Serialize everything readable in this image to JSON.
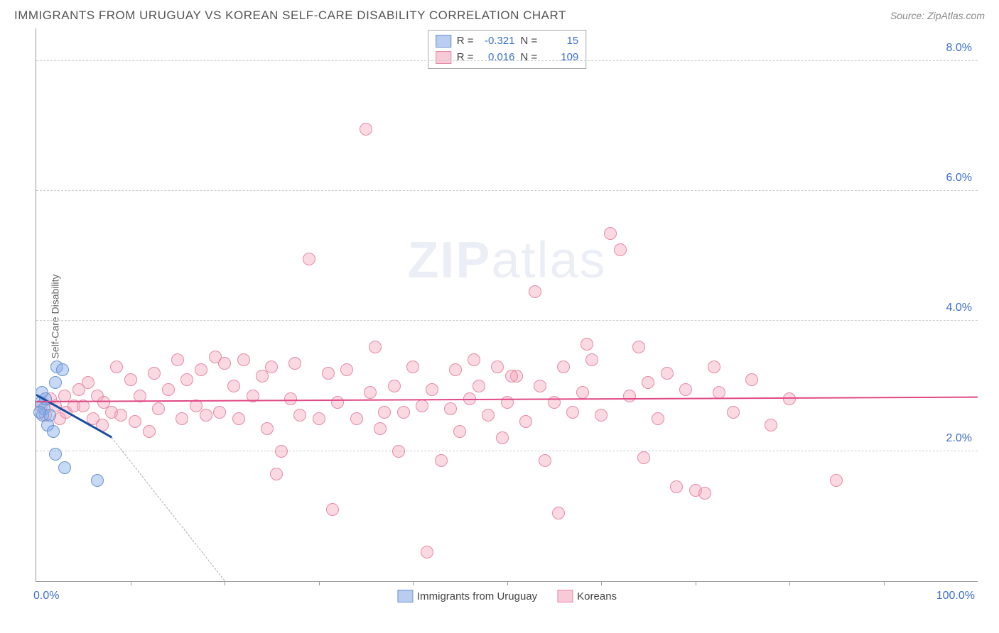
{
  "title": "IMMIGRANTS FROM URUGUAY VS KOREAN SELF-CARE DISABILITY CORRELATION CHART",
  "source_label": "Source:",
  "source_name": "ZipAtlas.com",
  "y_axis_label": "Self-Care Disability",
  "watermark_a": "ZIP",
  "watermark_b": "atlas",
  "x_label_min": "0.0%",
  "x_label_max": "100.0%",
  "chart": {
    "type": "scatter",
    "xlim": [
      0,
      100
    ],
    "ylim": [
      0,
      8.5
    ],
    "y_ticks": [
      2.0,
      4.0,
      6.0,
      8.0
    ],
    "y_tick_labels": [
      "2.0%",
      "4.0%",
      "6.0%",
      "8.0%"
    ],
    "x_ticks": [
      10,
      20,
      30,
      40,
      50,
      60,
      70,
      80,
      90
    ],
    "grid_color": "#cccccc",
    "background_color": "#ffffff",
    "axis_color": "#999999"
  },
  "series": [
    {
      "key": "uruguay",
      "label": "Immigrants from Uruguay",
      "fill": "rgba(130,170,230,0.45)",
      "stroke": "#6a93d4",
      "swatch_fill": "#b8cdef",
      "swatch_stroke": "#6a93d4",
      "r_label": "R =",
      "r_value": "-0.321",
      "n_label": "N =",
      "n_value": "15",
      "trend": {
        "x1": 0,
        "y1": 2.85,
        "x2": 8,
        "y2": 2.2,
        "color": "#1c4ea0",
        "width": 3,
        "dash_x2": 20,
        "dash_y2": 0
      },
      "points": [
        {
          "x": 0.5,
          "y": 2.75
        },
        {
          "x": 0.7,
          "y": 2.55
        },
        {
          "x": 0.6,
          "y": 2.9
        },
        {
          "x": 0.8,
          "y": 2.65
        },
        {
          "x": 1.2,
          "y": 2.4
        },
        {
          "x": 1.4,
          "y": 2.55
        },
        {
          "x": 1.0,
          "y": 2.8
        },
        {
          "x": 2.0,
          "y": 3.05
        },
        {
          "x": 2.2,
          "y": 3.3
        },
        {
          "x": 2.8,
          "y": 3.25
        },
        {
          "x": 1.8,
          "y": 2.3
        },
        {
          "x": 2.0,
          "y": 1.95
        },
        {
          "x": 3.0,
          "y": 1.75
        },
        {
          "x": 6.5,
          "y": 1.55
        },
        {
          "x": 0.4,
          "y": 2.6
        }
      ]
    },
    {
      "key": "koreans",
      "label": "Koreans",
      "fill": "rgba(245,160,185,0.4)",
      "stroke": "#e58aa6",
      "swatch_fill": "#f8c9d7",
      "swatch_stroke": "#e58aa6",
      "r_label": "R =",
      "r_value": "0.016",
      "n_label": "N =",
      "n_value": "109",
      "trend": {
        "x1": 0,
        "y1": 2.75,
        "x2": 100,
        "y2": 2.82,
        "color": "#e04884",
        "width": 2
      },
      "points": [
        {
          "x": 0.5,
          "y": 2.7
        },
        {
          "x": 1,
          "y": 2.55
        },
        {
          "x": 1.5,
          "y": 2.8
        },
        {
          "x": 2,
          "y": 2.7
        },
        {
          "x": 2.5,
          "y": 2.5
        },
        {
          "x": 3,
          "y": 2.85
        },
        {
          "x": 3.2,
          "y": 2.6
        },
        {
          "x": 4,
          "y": 2.7
        },
        {
          "x": 4.5,
          "y": 2.95
        },
        {
          "x": 5,
          "y": 2.7
        },
        {
          "x": 5.5,
          "y": 3.05
        },
        {
          "x": 6,
          "y": 2.5
        },
        {
          "x": 6.5,
          "y": 2.85
        },
        {
          "x": 7,
          "y": 2.4
        },
        {
          "x": 7.2,
          "y": 2.75
        },
        {
          "x": 8,
          "y": 2.6
        },
        {
          "x": 8.5,
          "y": 3.3
        },
        {
          "x": 9,
          "y": 2.55
        },
        {
          "x": 10,
          "y": 3.1
        },
        {
          "x": 10.5,
          "y": 2.45
        },
        {
          "x": 11,
          "y": 2.85
        },
        {
          "x": 12,
          "y": 2.3
        },
        {
          "x": 12.5,
          "y": 3.2
        },
        {
          "x": 13,
          "y": 2.65
        },
        {
          "x": 14,
          "y": 2.95
        },
        {
          "x": 15,
          "y": 3.4
        },
        {
          "x": 15.5,
          "y": 2.5
        },
        {
          "x": 16,
          "y": 3.1
        },
        {
          "x": 17,
          "y": 2.7
        },
        {
          "x": 17.5,
          "y": 3.25
        },
        {
          "x": 18,
          "y": 2.55
        },
        {
          "x": 19,
          "y": 3.45
        },
        {
          "x": 19.5,
          "y": 2.6
        },
        {
          "x": 20,
          "y": 3.35
        },
        {
          "x": 21,
          "y": 3.0
        },
        {
          "x": 21.5,
          "y": 2.5
        },
        {
          "x": 22,
          "y": 3.4
        },
        {
          "x": 23,
          "y": 2.85
        },
        {
          "x": 24,
          "y": 3.15
        },
        {
          "x": 24.5,
          "y": 2.35
        },
        {
          "x": 25,
          "y": 3.3
        },
        {
          "x": 25.5,
          "y": 1.65
        },
        {
          "x": 26,
          "y": 2.0
        },
        {
          "x": 27,
          "y": 2.8
        },
        {
          "x": 27.5,
          "y": 3.35
        },
        {
          "x": 28,
          "y": 2.55
        },
        {
          "x": 29,
          "y": 4.95
        },
        {
          "x": 30,
          "y": 2.5
        },
        {
          "x": 31,
          "y": 3.2
        },
        {
          "x": 31.5,
          "y": 1.1
        },
        {
          "x": 32,
          "y": 2.75
        },
        {
          "x": 33,
          "y": 3.25
        },
        {
          "x": 34,
          "y": 2.5
        },
        {
          "x": 35,
          "y": 6.95
        },
        {
          "x": 35.5,
          "y": 2.9
        },
        {
          "x": 36,
          "y": 3.6
        },
        {
          "x": 37,
          "y": 2.6
        },
        {
          "x": 38,
          "y": 3.0
        },
        {
          "x": 38.5,
          "y": 2.0
        },
        {
          "x": 39,
          "y": 2.6
        },
        {
          "x": 40,
          "y": 3.3
        },
        {
          "x": 41,
          "y": 2.7
        },
        {
          "x": 41.5,
          "y": 0.45
        },
        {
          "x": 42,
          "y": 2.95
        },
        {
          "x": 43,
          "y": 1.85
        },
        {
          "x": 44,
          "y": 2.65
        },
        {
          "x": 44.5,
          "y": 3.25
        },
        {
          "x": 45,
          "y": 2.3
        },
        {
          "x": 46,
          "y": 2.8
        },
        {
          "x": 47,
          "y": 3.0
        },
        {
          "x": 48,
          "y": 2.55
        },
        {
          "x": 49,
          "y": 3.3
        },
        {
          "x": 49.5,
          "y": 2.2
        },
        {
          "x": 50,
          "y": 2.75
        },
        {
          "x": 51,
          "y": 3.15
        },
        {
          "x": 52,
          "y": 2.45
        },
        {
          "x": 53,
          "y": 4.45
        },
        {
          "x": 53.5,
          "y": 3.0
        },
        {
          "x": 54,
          "y": 1.85
        },
        {
          "x": 55,
          "y": 2.75
        },
        {
          "x": 55.5,
          "y": 1.05
        },
        {
          "x": 56,
          "y": 3.3
        },
        {
          "x": 57,
          "y": 2.6
        },
        {
          "x": 58,
          "y": 2.9
        },
        {
          "x": 59,
          "y": 3.4
        },
        {
          "x": 60,
          "y": 2.55
        },
        {
          "x": 61,
          "y": 5.35
        },
        {
          "x": 62,
          "y": 5.1
        },
        {
          "x": 63,
          "y": 2.85
        },
        {
          "x": 64,
          "y": 3.6
        },
        {
          "x": 64.5,
          "y": 1.9
        },
        {
          "x": 65,
          "y": 3.05
        },
        {
          "x": 66,
          "y": 2.5
        },
        {
          "x": 67,
          "y": 3.2
        },
        {
          "x": 68,
          "y": 1.45
        },
        {
          "x": 69,
          "y": 2.95
        },
        {
          "x": 70,
          "y": 1.4
        },
        {
          "x": 71,
          "y": 1.35
        },
        {
          "x": 72,
          "y": 3.3
        },
        {
          "x": 74,
          "y": 2.6
        },
        {
          "x": 76,
          "y": 3.1
        },
        {
          "x": 78,
          "y": 2.4
        },
        {
          "x": 80,
          "y": 2.8
        },
        {
          "x": 72.5,
          "y": 2.9
        },
        {
          "x": 85,
          "y": 1.55
        },
        {
          "x": 58.5,
          "y": 3.65
        },
        {
          "x": 46.5,
          "y": 3.4
        },
        {
          "x": 50.5,
          "y": 3.15
        },
        {
          "x": 36.5,
          "y": 2.35
        }
      ]
    }
  ]
}
